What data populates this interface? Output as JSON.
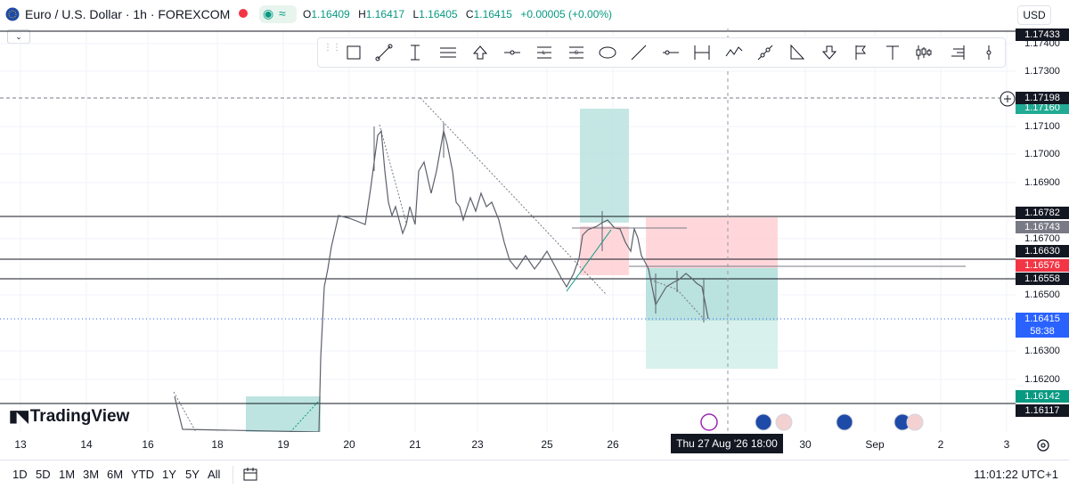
{
  "header": {
    "symbol": "Euro / U.S. Dollar · 1h · FOREXCOM",
    "indicator_symbol": "≈",
    "ohlc": [
      {
        "k": "O",
        "v": "1.16409"
      },
      {
        "k": "H",
        "v": "1.16417"
      },
      {
        "k": "L",
        "v": "1.16405"
      },
      {
        "k": "C",
        "v": "1.16415"
      },
      {
        "k": "",
        "v": "+0.00005 (+0.00%)"
      }
    ],
    "currency": "USD"
  },
  "toolbar": {
    "tools": [
      "rectangle-icon",
      "path-icon",
      "trendline-icon",
      "parallel-channel-icon",
      "arrow-up-icon",
      "horizontal-line-icon",
      "long-position-icon",
      "short-position-icon",
      "ellipse-icon",
      "ray-icon",
      "horizontal-ray-icon",
      "date-range-icon",
      "elliott-wave-icon",
      "projection-icon",
      "triangle-icon",
      "arrow-down-icon",
      "flag-icon",
      "text-icon",
      "volume-profile-icon",
      "fixed-range-volume-icon",
      "vertical-line-icon"
    ]
  },
  "price_axis": {
    "ticks": [
      "1.17400",
      "1.17300",
      "1.17100",
      "1.17000",
      "1.16900",
      "1.16700",
      "1.16500",
      "1.16300",
      "1.16200"
    ],
    "badges": [
      {
        "text": "1.17433",
        "bg": "#131722",
        "fg": "#ffffff"
      },
      {
        "text": "1.17198",
        "bg": "#131722",
        "fg": "#ffffff"
      },
      {
        "text": "1.17160",
        "bg": "#22ab94",
        "fg": "#ffffff"
      },
      {
        "text": "1.16782",
        "bg": "#131722",
        "fg": "#ffffff"
      },
      {
        "text": "1.16743",
        "bg": "#787b86",
        "fg": "#ffffff"
      },
      {
        "text": "1.16630",
        "bg": "#131722",
        "fg": "#ffffff"
      },
      {
        "text": "1.16576",
        "bg": "#f23645",
        "fg": "#ffffff"
      },
      {
        "text": "1.16558",
        "bg": "#131722",
        "fg": "#ffffff"
      },
      {
        "text": "1.16415",
        "bg": "#2962ff",
        "fg": "#ffffff"
      },
      {
        "text": "58:38",
        "bg": "#2962ff",
        "fg": "#ffffff"
      },
      {
        "text": "1.16142",
        "bg": "#089981",
        "fg": "#ffffff"
      },
      {
        "text": "1.16117",
        "bg": "#131722",
        "fg": "#ffffff"
      }
    ]
  },
  "time_axis": {
    "ticks": [
      "13",
      "14",
      "16",
      "18",
      "19",
      "20",
      "21",
      "23",
      "25",
      "26",
      "30",
      "Sep",
      "2",
      "3"
    ],
    "crosshair_label": "Thu 27 Aug '26   18:00"
  },
  "logo": "TradingView",
  "bottom": {
    "ranges": [
      "1D",
      "5D",
      "1M",
      "3M",
      "6M",
      "YTD",
      "1Y",
      "5Y",
      "All"
    ],
    "clock": "11:01:22 UTC+1"
  },
  "colors": {
    "up": "#089981",
    "down": "#f23645",
    "accent": "#2962ff",
    "profit_zone": "#b2dfdb",
    "loss_zone": "#ffcdd2"
  }
}
